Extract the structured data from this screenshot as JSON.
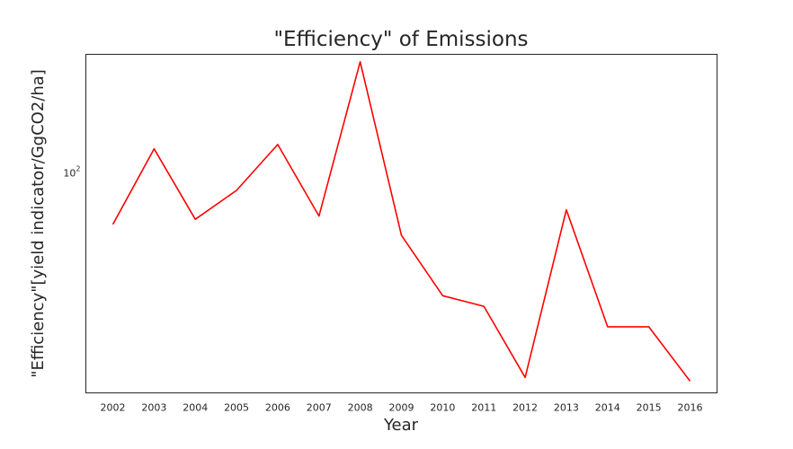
{
  "chart_data": {
    "type": "line",
    "title": "\"Efficiency\" of Emissions",
    "xlabel": "Year",
    "ylabel": "\"Efficiency\"[yield indicator/GgCO2/ha]",
    "yscale": "log",
    "yticks": [
      {
        "value": 100,
        "base": "10",
        "exp": "2"
      }
    ],
    "ylim": [
      13,
      300
    ],
    "grid": false,
    "line_color": "#ff0000",
    "x": [
      "2002",
      "2003",
      "2004",
      "2005",
      "2006",
      "2007",
      "2008",
      "2009",
      "2010",
      "2011",
      "2012",
      "2013",
      "2014",
      "2015",
      "2016"
    ],
    "series": [
      {
        "values": [
          62,
          125,
          65,
          85,
          130,
          67,
          280,
          56,
          32,
          29,
          15,
          71,
          24,
          24,
          14.5
        ]
      }
    ]
  }
}
